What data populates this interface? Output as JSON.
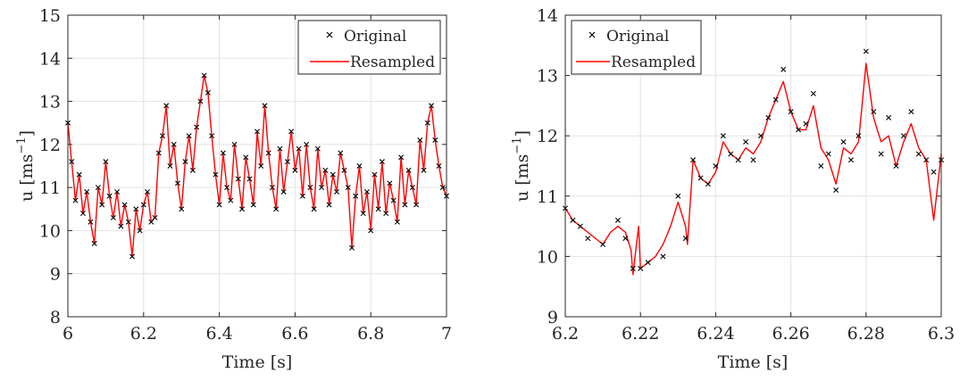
{
  "chart_data": [
    {
      "type": "scatter+line",
      "title": "",
      "xlabel": "Time [s]",
      "ylabel": "u [ms",
      "ylabel_sup": "−1",
      "ylabel_close": "]",
      "xlim": [
        6,
        7
      ],
      "ylim": [
        8,
        15
      ],
      "xticks": [
        6,
        6.2,
        6.4,
        6.6,
        6.8,
        7
      ],
      "xtick_labels": [
        "6",
        "6.2",
        "6.4",
        "6.6",
        "6.8",
        "7"
      ],
      "yticks": [
        8,
        9,
        10,
        11,
        12,
        13,
        14,
        15
      ],
      "ytick_labels": [
        "8",
        "9",
        "10",
        "11",
        "12",
        "13",
        "14",
        "15"
      ],
      "grid": true,
      "legend_position": "top-right",
      "series": [
        {
          "name": "Original",
          "style": "markers",
          "marker": "x",
          "color": "#000000",
          "x": [
            6.0,
            6.01,
            6.02,
            6.03,
            6.04,
            6.05,
            6.06,
            6.07,
            6.08,
            6.09,
            6.1,
            6.11,
            6.12,
            6.13,
            6.14,
            6.15,
            6.16,
            6.17,
            6.18,
            6.19,
            6.2,
            6.21,
            6.22,
            6.23,
            6.24,
            6.25,
            6.26,
            6.27,
            6.28,
            6.29,
            6.3,
            6.31,
            6.32,
            6.33,
            6.34,
            6.35,
            6.36,
            6.37,
            6.38,
            6.39,
            6.4,
            6.41,
            6.42,
            6.43,
            6.44,
            6.45,
            6.46,
            6.47,
            6.48,
            6.49,
            6.5,
            6.51,
            6.52,
            6.53,
            6.54,
            6.55,
            6.56,
            6.57,
            6.58,
            6.59,
            6.6,
            6.61,
            6.62,
            6.63,
            6.64,
            6.65,
            6.66,
            6.67,
            6.68,
            6.69,
            6.7,
            6.71,
            6.72,
            6.73,
            6.74,
            6.75,
            6.76,
            6.77,
            6.78,
            6.79,
            6.8,
            6.81,
            6.82,
            6.83,
            6.84,
            6.85,
            6.86,
            6.87,
            6.88,
            6.89,
            6.9,
            6.91,
            6.92,
            6.93,
            6.94,
            6.95,
            6.96,
            6.97,
            6.98,
            6.99,
            7.0
          ],
          "y": [
            12.5,
            11.6,
            10.7,
            11.3,
            10.4,
            10.9,
            10.2,
            9.7,
            11.0,
            10.6,
            11.6,
            10.8,
            10.3,
            10.9,
            10.1,
            10.6,
            10.2,
            9.4,
            10.5,
            10.0,
            10.6,
            10.9,
            10.2,
            10.3,
            11.8,
            12.2,
            12.9,
            11.5,
            12.0,
            11.1,
            10.5,
            11.6,
            12.2,
            11.4,
            12.4,
            13.0,
            13.6,
            13.2,
            12.2,
            11.3,
            10.6,
            11.8,
            11.0,
            10.7,
            12.0,
            11.2,
            10.5,
            11.7,
            11.2,
            10.6,
            12.3,
            11.5,
            12.9,
            11.8,
            11.0,
            10.5,
            11.9,
            10.9,
            11.6,
            12.3,
            11.4,
            11.9,
            10.8,
            12.0,
            11.0,
            10.5,
            11.9,
            11.0,
            11.4,
            10.6,
            11.3,
            10.9,
            11.8,
            11.4,
            11.0,
            9.6,
            10.8,
            11.5,
            10.4,
            10.9,
            10.0,
            11.3,
            10.5,
            11.6,
            10.4,
            11.1,
            10.7,
            10.2,
            11.7,
            10.6,
            11.4,
            11.0,
            10.6,
            12.1,
            11.4,
            12.5,
            12.9,
            12.1,
            11.5,
            11.0,
            10.8
          ]
        },
        {
          "name": "Resampled",
          "style": "line",
          "color": "#ff0000",
          "x": [
            6.0,
            6.01,
            6.02,
            6.03,
            6.04,
            6.05,
            6.06,
            6.07,
            6.08,
            6.09,
            6.1,
            6.11,
            6.12,
            6.13,
            6.14,
            6.15,
            6.16,
            6.17,
            6.18,
            6.19,
            6.2,
            6.21,
            6.22,
            6.23,
            6.24,
            6.25,
            6.26,
            6.27,
            6.28,
            6.29,
            6.3,
            6.31,
            6.32,
            6.33,
            6.34,
            6.35,
            6.36,
            6.37,
            6.38,
            6.39,
            6.4,
            6.41,
            6.42,
            6.43,
            6.44,
            6.45,
            6.46,
            6.47,
            6.48,
            6.49,
            6.5,
            6.51,
            6.52,
            6.53,
            6.54,
            6.55,
            6.56,
            6.57,
            6.58,
            6.59,
            6.6,
            6.61,
            6.62,
            6.63,
            6.64,
            6.65,
            6.66,
            6.67,
            6.68,
            6.69,
            6.7,
            6.71,
            6.72,
            6.73,
            6.74,
            6.75,
            6.76,
            6.77,
            6.78,
            6.79,
            6.8,
            6.81,
            6.82,
            6.83,
            6.84,
            6.85,
            6.86,
            6.87,
            6.88,
            6.89,
            6.9,
            6.91,
            6.92,
            6.93,
            6.94,
            6.95,
            6.96,
            6.97,
            6.98,
            6.99,
            7.0
          ],
          "y": [
            12.5,
            11.6,
            10.7,
            11.3,
            10.4,
            10.9,
            10.2,
            9.7,
            11.0,
            10.6,
            11.6,
            10.8,
            10.3,
            10.9,
            10.1,
            10.6,
            10.2,
            9.4,
            10.5,
            10.0,
            10.6,
            10.9,
            10.2,
            10.3,
            11.8,
            12.2,
            12.9,
            11.5,
            12.0,
            11.1,
            10.5,
            11.6,
            12.2,
            11.4,
            12.4,
            13.0,
            13.6,
            13.2,
            12.2,
            11.3,
            10.6,
            11.8,
            11.0,
            10.7,
            12.0,
            11.2,
            10.5,
            11.7,
            11.2,
            10.6,
            12.3,
            11.5,
            12.9,
            11.8,
            11.0,
            10.5,
            11.9,
            10.9,
            11.6,
            12.3,
            11.4,
            11.9,
            10.8,
            12.0,
            11.0,
            10.5,
            11.9,
            11.0,
            11.4,
            10.6,
            11.3,
            10.9,
            11.8,
            11.4,
            11.0,
            9.6,
            10.8,
            11.5,
            10.4,
            10.9,
            10.0,
            11.3,
            10.5,
            11.6,
            10.4,
            11.1,
            10.7,
            10.2,
            11.7,
            10.6,
            11.4,
            11.0,
            10.6,
            12.1,
            11.4,
            12.5,
            12.9,
            12.1,
            11.5,
            11.0,
            10.8
          ]
        }
      ]
    },
    {
      "type": "scatter+line",
      "title": "",
      "xlabel": "Time [s]",
      "ylabel": "u [ms",
      "ylabel_sup": "−1",
      "ylabel_close": "]",
      "xlim": [
        6.2,
        6.3
      ],
      "ylim": [
        9,
        14
      ],
      "xticks": [
        6.2,
        6.22,
        6.24,
        6.26,
        6.28,
        6.3
      ],
      "xtick_labels": [
        "6.2",
        "6.22",
        "6.24",
        "6.26",
        "6.28",
        "6.3"
      ],
      "yticks": [
        9,
        10,
        11,
        12,
        13,
        14
      ],
      "ytick_labels": [
        "9",
        "10",
        "11",
        "12",
        "13",
        "14"
      ],
      "grid": true,
      "legend_position": "top-left",
      "series": [
        {
          "name": "Original",
          "style": "markers",
          "marker": "x",
          "color": "#000000",
          "x": [
            6.2,
            6.202,
            6.204,
            6.206,
            6.21,
            6.214,
            6.216,
            6.218,
            6.22,
            6.222,
            6.226,
            6.23,
            6.232,
            6.234,
            6.236,
            6.238,
            6.24,
            6.242,
            6.244,
            6.246,
            6.248,
            6.25,
            6.252,
            6.254,
            6.256,
            6.258,
            6.26,
            6.262,
            6.264,
            6.266,
            6.268,
            6.27,
            6.272,
            6.274,
            6.276,
            6.278,
            6.28,
            6.282,
            6.284,
            6.286,
            6.288,
            6.29,
            6.292,
            6.294,
            6.296,
            6.298,
            6.3
          ],
          "y": [
            10.8,
            10.6,
            10.5,
            10.3,
            10.2,
            10.6,
            10.3,
            9.8,
            9.8,
            9.9,
            10.0,
            11.0,
            10.3,
            11.6,
            11.3,
            11.2,
            11.5,
            12.0,
            11.7,
            11.6,
            11.9,
            11.6,
            12.0,
            12.3,
            12.6,
            13.1,
            12.4,
            12.1,
            12.2,
            12.7,
            11.5,
            11.7,
            11.1,
            11.9,
            11.6,
            12.0,
            13.4,
            12.4,
            11.7,
            12.3,
            11.5,
            12.0,
            12.4,
            11.7,
            11.6,
            11.4,
            11.6
          ]
        },
        {
          "name": "Resampled",
          "style": "line",
          "color": "#ff0000",
          "x": [
            6.2,
            6.202,
            6.204,
            6.206,
            6.208,
            6.21,
            6.212,
            6.214,
            6.216,
            6.2175,
            6.218,
            6.2195,
            6.22,
            6.222,
            6.224,
            6.226,
            6.228,
            6.23,
            6.232,
            6.2325,
            6.234,
            6.236,
            6.238,
            6.24,
            6.242,
            6.244,
            6.246,
            6.248,
            6.25,
            6.252,
            6.254,
            6.256,
            6.258,
            6.26,
            6.262,
            6.264,
            6.266,
            6.268,
            6.27,
            6.272,
            6.274,
            6.276,
            6.278,
            6.28,
            6.282,
            6.284,
            6.286,
            6.288,
            6.29,
            6.292,
            6.294,
            6.296,
            6.298,
            6.3
          ],
          "y": [
            10.8,
            10.6,
            10.5,
            10.4,
            10.3,
            10.2,
            10.4,
            10.5,
            10.4,
            10.1,
            9.7,
            10.5,
            9.8,
            9.9,
            10.0,
            10.2,
            10.5,
            10.9,
            10.5,
            10.2,
            11.6,
            11.3,
            11.2,
            11.4,
            11.9,
            11.7,
            11.6,
            11.8,
            11.7,
            11.9,
            12.3,
            12.6,
            12.9,
            12.4,
            12.1,
            12.1,
            12.5,
            11.8,
            11.6,
            11.2,
            11.8,
            11.7,
            11.9,
            13.2,
            12.3,
            11.9,
            12.0,
            11.5,
            11.9,
            12.2,
            11.8,
            11.6,
            10.6,
            11.7
          ]
        }
      ]
    }
  ]
}
